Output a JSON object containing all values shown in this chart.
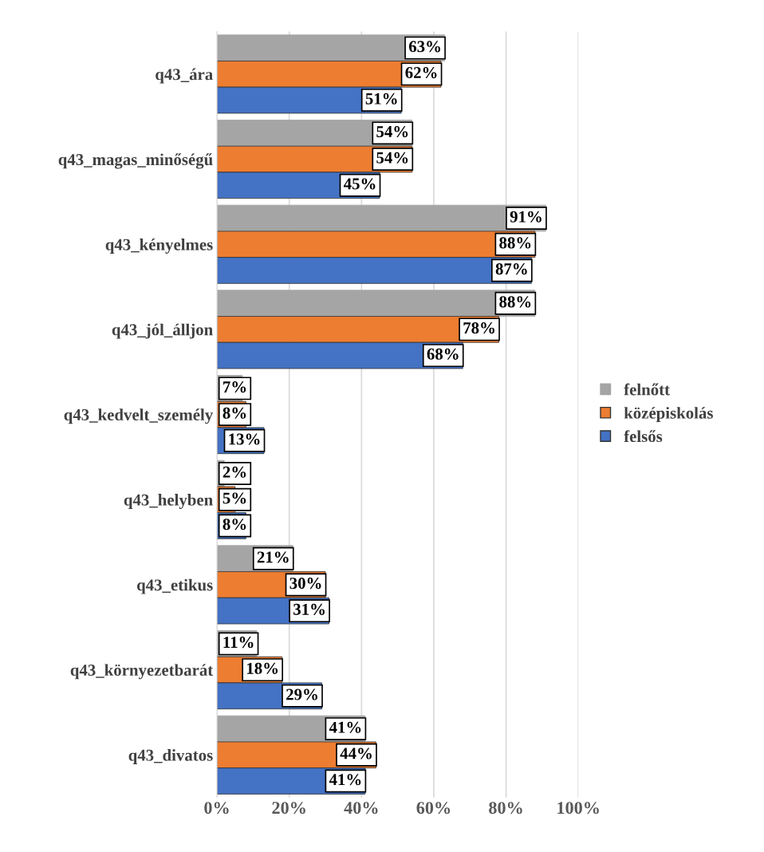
{
  "chart_data": {
    "type": "bar",
    "orientation": "horizontal",
    "categories": [
      "q43_ára",
      "q43_magas_minőségű",
      "q43_kényelmes",
      "q43_jól_álljon",
      "q43_kedvelt_személy",
      "q43_helyben",
      "q43_etikus",
      "q43_környezetbarát",
      "q43_divatos"
    ],
    "series": [
      {
        "name": "felnőtt",
        "color": "#a5a5a5",
        "values": [
          63,
          54,
          91,
          88,
          7,
          2,
          21,
          11,
          41
        ],
        "value_labels": [
          "63%",
          "54%",
          "91%",
          "88%",
          "7%",
          "2%",
          "21%",
          "11%",
          "41%"
        ]
      },
      {
        "name": "középiskolás",
        "color": "#ed7d31",
        "values": [
          62,
          54,
          88,
          78,
          8,
          5,
          30,
          18,
          44
        ],
        "value_labels": [
          "62%",
          "54%",
          "88%",
          "78%",
          "8%",
          "5%",
          "30%",
          "18%",
          "44%"
        ]
      },
      {
        "name": "felsős",
        "color": "#4472c4",
        "values": [
          51,
          45,
          87,
          68,
          13,
          8,
          31,
          29,
          41
        ],
        "value_labels": [
          "51%",
          "45%",
          "87%",
          "68%",
          "13%",
          "8%",
          "31%",
          "29%",
          "41%"
        ]
      }
    ],
    "xlim": [
      0,
      100
    ],
    "xticks": [
      {
        "value": 0,
        "label": "0%"
      },
      {
        "value": 20,
        "label": "20%"
      },
      {
        "value": 40,
        "label": "40%"
      },
      {
        "value": 60,
        "label": "60%"
      },
      {
        "value": 80,
        "label": "80%"
      },
      {
        "value": 100,
        "label": "100%"
      }
    ],
    "grid": "x",
    "legend": "right"
  }
}
